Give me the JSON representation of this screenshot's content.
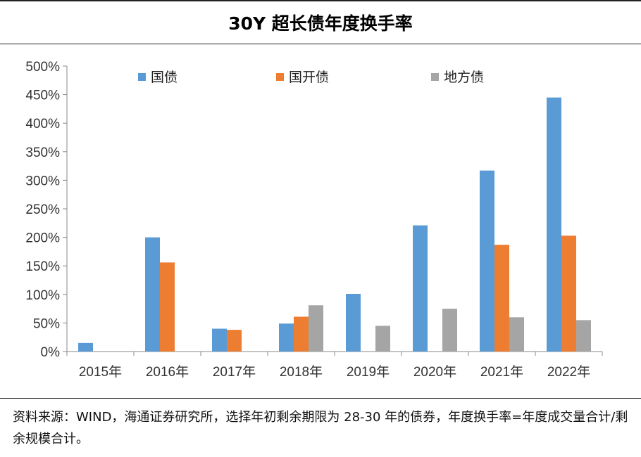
{
  "title": "30Y 超长债年度换手率",
  "source": "资料来源：WIND，海通证券研究所，选择年初剩余期限为 28-30 年的债券，年度换手率=年度成交量合计/剩余规模合计。",
  "chart_data": {
    "type": "bar",
    "title": "30Y 超长债年度换手率",
    "categories": [
      "2015年",
      "2016年",
      "2017年",
      "2018年",
      "2019年",
      "2020年",
      "2021年",
      "2022年"
    ],
    "series": [
      {
        "name": "国债",
        "color": "#5B9BD5",
        "values": [
          15,
          200,
          40,
          49,
          101,
          221,
          317,
          445
        ]
      },
      {
        "name": "国开债",
        "color": "#ED7D31",
        "values": [
          0,
          156,
          38,
          61,
          0,
          0,
          187,
          203
        ]
      },
      {
        "name": "地方债",
        "color": "#A5A5A5",
        "values": [
          0,
          0,
          0,
          81,
          45,
          75,
          60,
          55
        ]
      }
    ],
    "yticks": [
      "0%",
      "50%",
      "100%",
      "150%",
      "200%",
      "250%",
      "300%",
      "350%",
      "400%",
      "450%",
      "500%"
    ],
    "ylim": [
      0,
      500
    ],
    "ylabel_unit": "%",
    "legend_position": "top",
    "grid": false
  }
}
